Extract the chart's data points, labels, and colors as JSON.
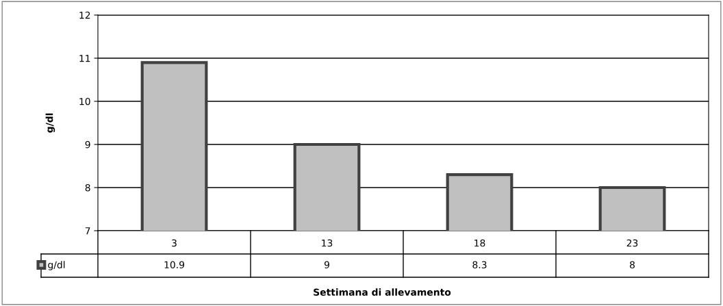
{
  "chart_data": {
    "type": "bar",
    "xlabel": "Settimana di allevamento",
    "ylabel": "g/dl",
    "categories": [
      "3",
      "13",
      "18",
      "23"
    ],
    "series": [
      {
        "name": "g/dl",
        "color": "#c0c0c0",
        "values": [
          10.9,
          9,
          8.3,
          8
        ]
      }
    ],
    "ylim": [
      7,
      12
    ],
    "yticks": [
      7,
      8,
      9,
      10,
      11,
      12
    ],
    "grid": "y",
    "data_labels": true,
    "legend": "bottom"
  }
}
